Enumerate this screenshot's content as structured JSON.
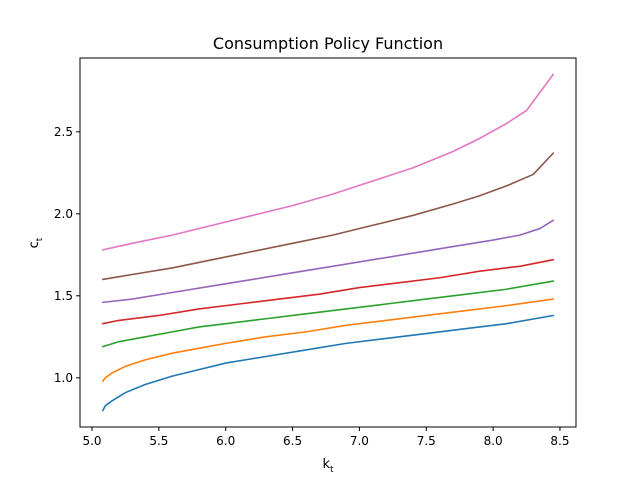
{
  "chart_data": {
    "type": "line",
    "title": "Consumption Policy Function",
    "xlabel": {
      "base": "k",
      "sub": "t"
    },
    "ylabel": {
      "base": "c",
      "sub": "t"
    },
    "xlim": [
      4.91,
      8.62
    ],
    "ylim": [
      0.7,
      2.95
    ],
    "xticks": [
      5.0,
      5.5,
      6.0,
      6.5,
      7.0,
      7.5,
      8.0,
      8.5
    ],
    "xtick_labels": [
      "5.0",
      "5.5",
      "6.0",
      "6.5",
      "7.0",
      "7.5",
      "8.0",
      "8.5"
    ],
    "yticks": [
      1.0,
      1.5,
      2.0,
      2.5
    ],
    "ytick_labels": [
      "1.0",
      "1.5",
      "2.0",
      "2.5"
    ],
    "grid": false,
    "legend": "none",
    "series": [
      {
        "color": "#1f77b4",
        "x": [
          5.08,
          5.1,
          5.15,
          5.25,
          5.4,
          5.6,
          5.8,
          6.0,
          6.3,
          6.6,
          6.9,
          7.2,
          7.5,
          7.8,
          8.1,
          8.45
        ],
        "y": [
          0.8,
          0.83,
          0.86,
          0.91,
          0.96,
          1.01,
          1.05,
          1.09,
          1.13,
          1.17,
          1.21,
          1.24,
          1.27,
          1.3,
          1.33,
          1.38
        ]
      },
      {
        "color": "#ff7f0e",
        "x": [
          5.08,
          5.1,
          5.15,
          5.25,
          5.4,
          5.6,
          5.8,
          6.0,
          6.3,
          6.6,
          6.9,
          7.2,
          7.5,
          7.8,
          8.1,
          8.45
        ],
        "y": [
          0.98,
          1.0,
          1.03,
          1.07,
          1.11,
          1.15,
          1.18,
          1.21,
          1.25,
          1.28,
          1.32,
          1.35,
          1.38,
          1.41,
          1.44,
          1.48
        ]
      },
      {
        "color": "#2ca02c",
        "x": [
          5.08,
          5.2,
          5.4,
          5.6,
          5.8,
          6.0,
          6.3,
          6.6,
          6.9,
          7.2,
          7.5,
          7.8,
          8.1,
          8.45
        ],
        "y": [
          1.19,
          1.22,
          1.25,
          1.28,
          1.31,
          1.33,
          1.36,
          1.39,
          1.42,
          1.45,
          1.48,
          1.51,
          1.54,
          1.59
        ]
      },
      {
        "color": "#d62728",
        "x": [
          5.08,
          5.2,
          5.5,
          5.8,
          6.1,
          6.4,
          6.7,
          7.0,
          7.3,
          7.6,
          7.9,
          8.2,
          8.45
        ],
        "y": [
          1.33,
          1.35,
          1.38,
          1.42,
          1.45,
          1.48,
          1.51,
          1.55,
          1.58,
          1.61,
          1.65,
          1.68,
          1.72
        ]
      },
      {
        "color": "#9467bd",
        "x": [
          5.08,
          5.3,
          5.6,
          5.9,
          6.2,
          6.5,
          6.8,
          7.1,
          7.4,
          7.7,
          8.0,
          8.2,
          8.35,
          8.45
        ],
        "y": [
          1.46,
          1.48,
          1.52,
          1.56,
          1.6,
          1.64,
          1.68,
          1.72,
          1.76,
          1.8,
          1.84,
          1.87,
          1.91,
          1.96
        ]
      },
      {
        "color": "#8c564b",
        "x": [
          5.08,
          5.3,
          5.6,
          5.9,
          6.2,
          6.5,
          6.8,
          7.1,
          7.4,
          7.7,
          7.9,
          8.1,
          8.3,
          8.45
        ],
        "y": [
          1.6,
          1.63,
          1.67,
          1.72,
          1.77,
          1.82,
          1.87,
          1.93,
          1.99,
          2.06,
          2.11,
          2.17,
          2.24,
          2.37
        ]
      },
      {
        "color": "#e377c2",
        "x": [
          5.08,
          5.3,
          5.6,
          5.9,
          6.2,
          6.5,
          6.8,
          7.1,
          7.4,
          7.7,
          7.9,
          8.1,
          8.25,
          8.45
        ],
        "y": [
          1.78,
          1.82,
          1.87,
          1.93,
          1.99,
          2.05,
          2.12,
          2.2,
          2.28,
          2.38,
          2.46,
          2.55,
          2.63,
          2.85
        ]
      }
    ]
  }
}
